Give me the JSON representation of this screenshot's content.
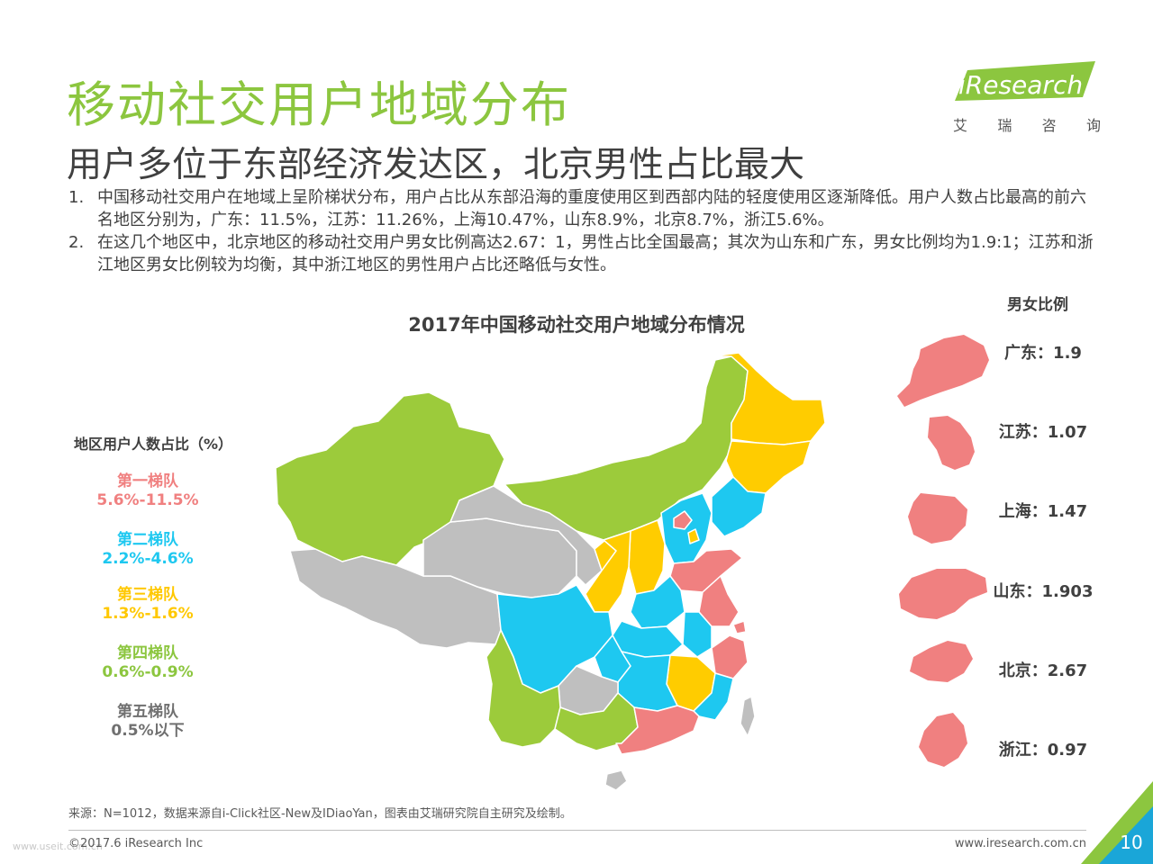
{
  "header": {
    "title": "移动社交用户地域分布",
    "subtitle": "用户多位于东部经济发达区，北京男性占比最大"
  },
  "logo": {
    "brand": "iResearch",
    "chars": [
      "艾",
      "瑞",
      "咨",
      "询"
    ]
  },
  "notes": [
    {
      "num": "1.",
      "text": "中国移动社交用户在地域上呈阶梯状分布，用户占比从东部沿海的重度使用区到西部内陆的轻度使用区逐渐降低。用户人数占比最高的前六名地区分别为，广东：11.5%，江苏：11.26%，上海10.47%，山东8.9%，北京8.7%，浙江5.6%。"
    },
    {
      "num": "2.",
      "text": "在这几个地区中，北京地区的移动社交用户男女比例高达2.67：1，男性占比全国最高；其次为山东和广东，男女比例均为1.9:1；江苏和浙江地区男女比例较为均衡，其中浙江地区的男性用户占比还略低与女性。"
    }
  ],
  "chart": {
    "title": "2017年中国移动社交用户地域分布情况"
  },
  "legend": {
    "title": "地区用户人数占比（%）",
    "tiers": [
      {
        "name": "第一梯队",
        "range": "5.6%-11.5%",
        "color": "#f08080"
      },
      {
        "name": "第二梯队",
        "range": "2.2%-4.6%",
        "color": "#1ec8f0"
      },
      {
        "name": "第三梯队",
        "range": "1.3%-1.6%",
        "color": "#ffc800"
      },
      {
        "name": "第四梯队",
        "range": "0.6%-0.9%",
        "color": "#8cc63f"
      },
      {
        "name": "第五梯队",
        "range": "0.5%以下",
        "color": "#707070"
      }
    ]
  },
  "fill_colors": {
    "tier1": "#f08080",
    "tier2": "#1ec8f0",
    "tier3": "#ffcc00",
    "tier4": "#9ccb3b",
    "tier5": "#bfbfbf"
  },
  "ratios": {
    "heading": "男女比例",
    "items": [
      {
        "label": "广东：1.9"
      },
      {
        "label": "江苏：1.07"
      },
      {
        "label": "上海：1.47"
      },
      {
        "label": "山东：1.903"
      },
      {
        "label": "北京：2.67"
      },
      {
        "label": "浙江：0.97"
      }
    ]
  },
  "footer": {
    "source": "来源：N=1012，数据来源自i-Click社区-New及IDiaoYan，图表由艾瑞研究院自主研究及绘制。",
    "copyright": "©2017.6 iResearch Inc",
    "website": "www.iresearch.com.cn",
    "page": "10",
    "watermark": "www.useit.com.cn"
  }
}
